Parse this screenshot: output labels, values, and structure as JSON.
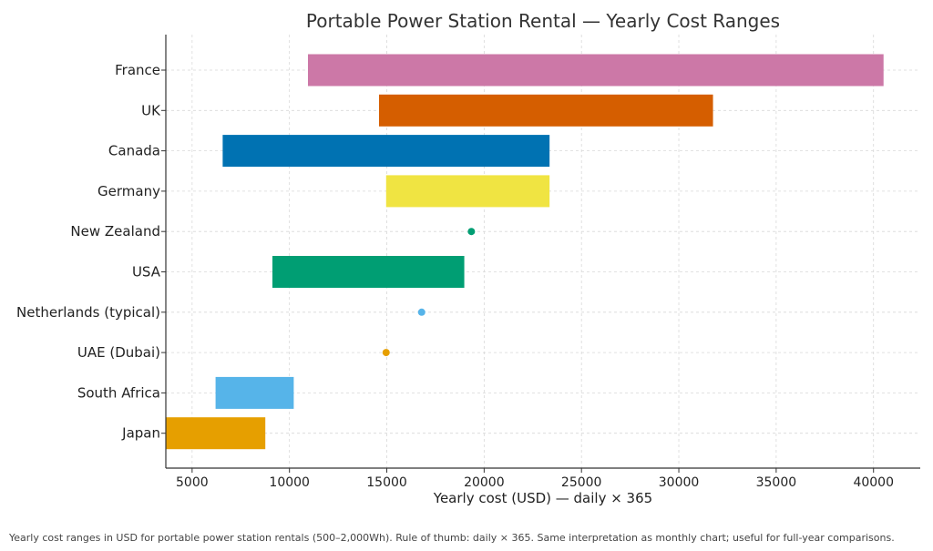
{
  "chart_data": {
    "type": "bar",
    "orientation": "horizontal-range",
    "title": "Portable Power Station Rental — Yearly Cost Ranges",
    "xlabel": "Yearly cost (USD) — daily × 365",
    "ylabel": "",
    "xlim": [
      3650,
      42400
    ],
    "xticks": [
      5000,
      10000,
      15000,
      20000,
      25000,
      30000,
      35000,
      40000
    ],
    "grid": true,
    "categories": [
      "France",
      "UK",
      "Canada",
      "Germany",
      "New Zealand",
      "USA",
      "Netherlands (typical)",
      "UAE (Dubai)",
      "South Africa",
      "Japan"
    ],
    "series": [
      {
        "name": "France",
        "low": 10950,
        "high": 40515,
        "color": "#cc78a7"
      },
      {
        "name": "UK",
        "low": 14600,
        "high": 31755,
        "color": "#d55e00"
      },
      {
        "name": "Canada",
        "low": 6570,
        "high": 23360,
        "color": "#0072b2"
      },
      {
        "name": "Germany",
        "low": 14965,
        "high": 23360,
        "color": "#f0e442"
      },
      {
        "name": "New Zealand",
        "low": 19345,
        "high": 19345,
        "color": "#009e73"
      },
      {
        "name": "USA",
        "low": 9125,
        "high": 18980,
        "color": "#009e73"
      },
      {
        "name": "Netherlands (typical)",
        "low": 16790,
        "high": 16790,
        "color": "#56b4e9"
      },
      {
        "name": "UAE (Dubai)",
        "low": 14965,
        "high": 14965,
        "color": "#e69f00"
      },
      {
        "name": "South Africa",
        "low": 6205,
        "high": 10220,
        "color": "#56b4e9"
      },
      {
        "name": "Japan",
        "low": 3650,
        "high": 8760,
        "color": "#e69f00"
      }
    ]
  },
  "caption": "Yearly cost ranges in USD for portable power station rentals (500–2,000Wh). Rule of thumb: daily × 365. Same interpretation as monthly chart; useful for full-year comparisons."
}
